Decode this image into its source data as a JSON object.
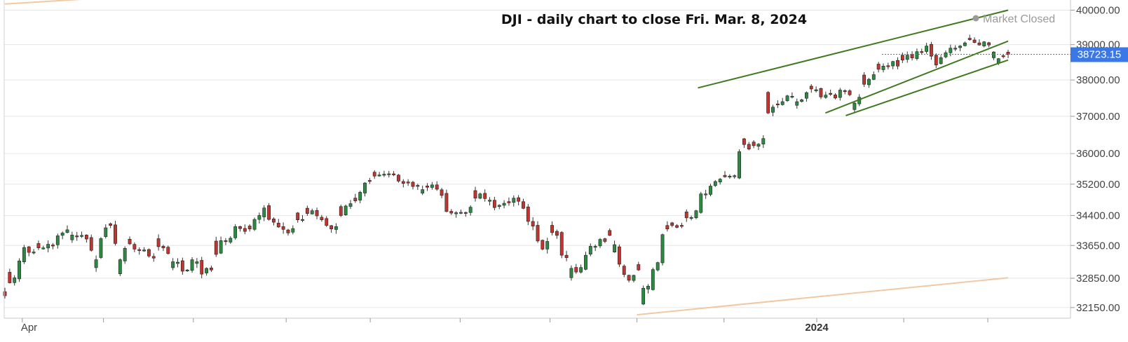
{
  "chart_data": {
    "type": "candlestick",
    "title": "DJI - daily chart to close Fri. Mar. 8, 2024",
    "status": "Market Closed",
    "last_price": 38723.15,
    "last_price_label": "38723.15",
    "y_ticks": [
      32150,
      32850,
      33650,
      34400,
      35200,
      36000,
      37000,
      38000,
      39000,
      40000
    ],
    "y_tick_labels": [
      "32150.00",
      "32850.00",
      "33650.00",
      "34400.00",
      "35200.00",
      "36000.00",
      "37000.00",
      "38000.00",
      "39000.00",
      "40000.00"
    ],
    "y_axis_scale": "log",
    "ylim": [
      31900,
      40300
    ],
    "x_labels": [
      "Apr",
      "2024"
    ],
    "x_range": [
      "2023-03-28",
      "2024-03-08"
    ],
    "x_gridline_dates": [
      "2023-04-03",
      "2023-05-01",
      "2023-06-01",
      "2023-07-03",
      "2023-08-01",
      "2023-09-01",
      "2023-10-02",
      "2023-11-01",
      "2023-12-01",
      "2024-01-02",
      "2024-02-01",
      "2024-03-01"
    ],
    "closes": [
      32430,
      32740,
      32860,
      33270,
      33600,
      33480,
      33490,
      33590,
      33590,
      33680,
      33640,
      33890,
      33960,
      34040,
      33910,
      33870,
      33900,
      33810,
      33530,
      33300,
      33820,
      34090,
      34150,
      33700,
      33300,
      33580,
      33690,
      33560,
      33530,
      33540,
      33390,
      33340,
      33620,
      33590,
      33450,
      33250,
      33240,
      33020,
      33050,
      33300,
      33250,
      32950,
      33090,
      33050,
      33430,
      33770,
      33760,
      33830,
      34120,
      34070,
      34000,
      34060,
      34300,
      34400,
      34590,
      34300,
      34230,
      34110,
      34050,
      33960,
      34070,
      34290,
      34300,
      34450,
      34520,
      34390,
      34290,
      34150,
      34060,
      34120,
      34400,
      34640,
      34700,
      34770,
      34990,
      35230,
      35280,
      35410,
      35440,
      35460,
      35470,
      35440,
      35280,
      35220,
      35230,
      35140,
      35170,
      35060,
      35120,
      35180,
      35070,
      34910,
      34500,
      34460,
      34470,
      34480,
      34470,
      34610,
      34840,
      34950,
      34830,
      34790,
      34600,
      34660,
      34710,
      34720,
      34840,
      34760,
      34580,
      34250,
      34130,
      33760,
      33560,
      33750,
      33970,
      33900,
      33410,
      33350,
      33090,
      33000,
      33110,
      33410,
      33630,
      33630,
      33800,
      33750,
      33900,
      33670,
      33190,
      32940,
      32800,
      32920,
      33050,
      32610,
      32660,
      33060,
      33230,
      33920,
      34060,
      34150,
      34100,
      34130,
      34340,
      34350,
      34520,
      34950,
      34950,
      35150,
      35270,
      35330,
      35390,
      35410,
      35420,
      36050,
      36240,
      36120,
      36210,
      36250,
      36400,
      37090,
      37250,
      37310,
      37400,
      37560,
      37550,
      37400,
      37450,
      37650,
      37750,
      37730,
      37530,
      37580,
      37600,
      37500,
      37720,
      37680,
      37590,
      37360,
      37520,
      37880,
      38020,
      38150,
      38300,
      38390,
      38400,
      38520,
      38390,
      38560,
      38700,
      38620,
      38800,
      38800,
      38960,
      38670,
      38420,
      38630,
      38770,
      38900,
      38900,
      38960,
      39050,
      39140,
      39060,
      38990,
      39080,
      38990,
      38790,
      38600,
      38660,
      38720
    ],
    "channel_lines": [
      {
        "color": "#3f7a1f",
        "from": [
          "2023-11-22",
          37780
        ],
        "to": [
          "2024-03-08",
          40000
        ]
      },
      {
        "color": "#3f7a1f",
        "from": [
          "2024-01-05",
          37090
        ],
        "to": [
          "2024-03-08",
          39100
        ]
      },
      {
        "color": "#3f7a1f",
        "from": [
          "2024-01-12",
          37020
        ],
        "to": [
          "2024-03-08",
          38560
        ]
      }
    ],
    "trend_lines": [
      {
        "color": "#f2c8a2",
        "from": [
          "2023-03-28",
          40180
        ],
        "to": [
          "2023-04-25",
          40330
        ]
      },
      {
        "color": "#f2c8a2",
        "from": [
          "2023-11-01",
          31980
        ],
        "to": [
          "2024-03-08",
          32860
        ]
      }
    ],
    "colors": {
      "up": "#2a8a3f",
      "down": "#c0352f",
      "wick": "#333333",
      "price_tag": "#3b78e7",
      "grid": "#e6e6e6"
    }
  }
}
